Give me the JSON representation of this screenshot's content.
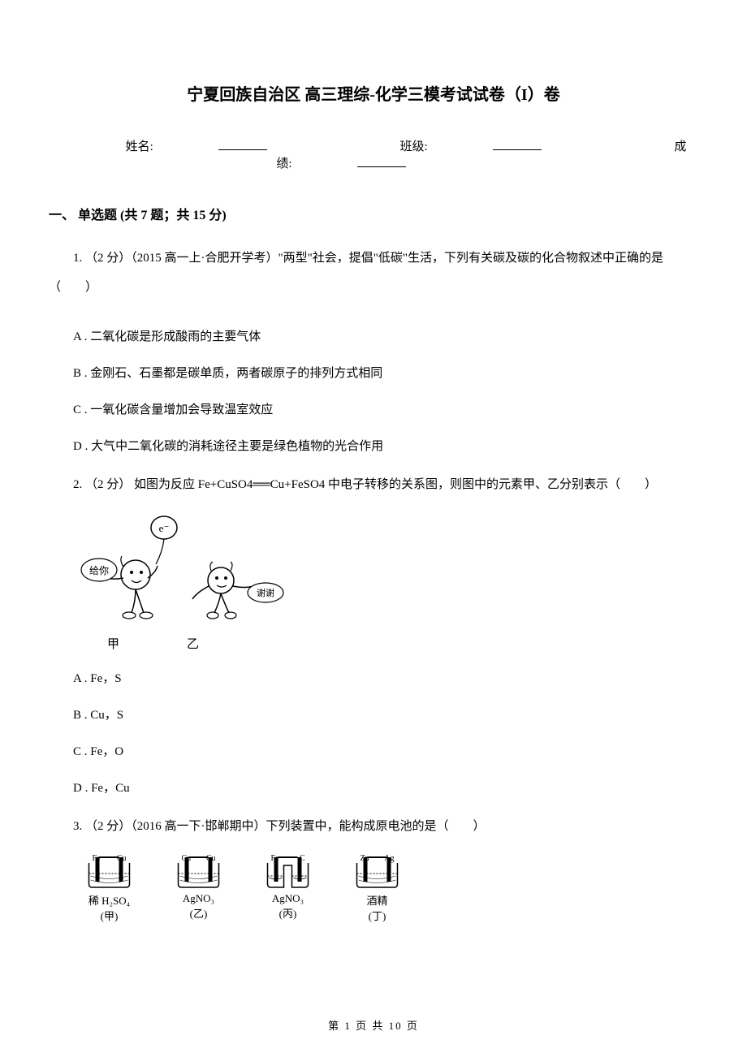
{
  "title": "宁夏回族自治区 高三理综-化学三模考试试卷（I）卷",
  "info": {
    "name_label": "姓名:",
    "class_label": "班级:",
    "score_label": "成绩:"
  },
  "section": "一、 单选题 (共 7 题；共 15 分)",
  "q1": {
    "stem": "1. （2 分）（2015 高一上·合肥开学考）\"两型\"社会，提倡\"低碳\"生活，下列有关碳及碳的化合物叙述中正确的是（　　）",
    "A": "A . 二氧化碳是形成酸雨的主要气体",
    "B": "B .  金刚石、石墨都是碳单质，两者碳原子的排列方式相同",
    "C": "C . 一氧化碳含量增加会导致温室效应",
    "D": "D . 大气中二氧化碳的消耗途径主要是绿色植物的光合作用"
  },
  "q2": {
    "stem": "2. （2 分） 如图为反应 Fe+CuSO4══Cu+FeSO4 中电子转移的关系图，则图中的元素甲、乙分别表示（　　）",
    "fig_e": "e⁻",
    "fig_give": "给你",
    "fig_thanks": "谢谢",
    "fig_jia": "甲",
    "fig_yi": "乙",
    "A": "A . Fe，S",
    "B": "B . Cu，S",
    "C": "C . Fe，O",
    "D": "D . Fe，Cu"
  },
  "q3": {
    "stem": "3. （2 分）（2016 高一下·邯郸期中）下列装置中，能构成原电池的是（　　）",
    "beakers": [
      {
        "left": "Fe",
        "right": "Cu",
        "solution": "稀 H₂SO₄",
        "label": "(甲)"
      },
      {
        "left": "Cu",
        "right": "Cu",
        "solution": "AgNO₃",
        "label": "(乙)"
      },
      {
        "left": "Fe",
        "right": "C",
        "solution": "AgNO₃",
        "label": "(丙)",
        "split": true
      },
      {
        "left": "Zn",
        "right": "Ag",
        "solution": "酒精",
        "label": "(丁)"
      }
    ]
  },
  "footer": "第 1 页 共 10 页",
  "colors": {
    "text": "#000000",
    "background": "#ffffff",
    "line": "#000000"
  }
}
